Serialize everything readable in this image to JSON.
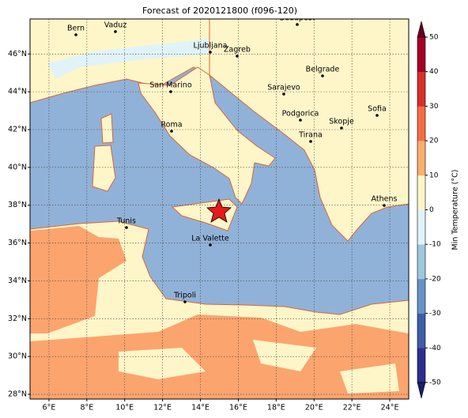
{
  "title": "Forecast of 2020121800 (f096-120)",
  "map": {
    "xlim": [
      5,
      25
    ],
    "ylim": [
      27.75,
      47.85
    ],
    "xticks": [
      {
        "value": 6,
        "label": "6°E"
      },
      {
        "value": 8,
        "label": "8°E"
      },
      {
        "value": 10,
        "label": "10°E"
      },
      {
        "value": 12,
        "label": "12°E"
      },
      {
        "value": 14,
        "label": "14°E"
      },
      {
        "value": 16,
        "label": "16°E"
      },
      {
        "value": 18,
        "label": "18°E"
      },
      {
        "value": 20,
        "label": "20°E"
      },
      {
        "value": 22,
        "label": "22°E"
      },
      {
        "value": 24,
        "label": "24°E"
      }
    ],
    "yticks": [
      {
        "value": 28,
        "label": "28°N"
      },
      {
        "value": 30,
        "label": "30°N"
      },
      {
        "value": 32,
        "label": "32°N"
      },
      {
        "value": 34,
        "label": "34°N"
      },
      {
        "value": 36,
        "label": "36°N"
      },
      {
        "value": 38,
        "label": "38°N"
      },
      {
        "value": 40,
        "label": "40°N"
      },
      {
        "value": 42,
        "label": "42°N"
      },
      {
        "value": 44,
        "label": "44°N"
      },
      {
        "value": 46,
        "label": "46°N"
      }
    ],
    "grid": true
  },
  "cities": [
    "Bern",
    "Vaduz",
    "Budapest",
    "Ljubljana",
    "Zagreb",
    "Belgrade",
    "San Marino",
    "Sarajevo",
    "Sofia",
    "Roma",
    "Podgorica",
    "Skopje",
    "Tirana",
    "Athens",
    "Tunis",
    "La Valette",
    "Tripoli"
  ],
  "colorbar": {
    "label": "Min Temperature (°C)",
    "lim": [
      -50,
      50
    ],
    "ticks": [
      -50,
      -40,
      -30,
      -20,
      -10,
      0,
      10,
      20,
      30,
      40,
      50
    ],
    "colors": [
      "#2c2f8f",
      "#3d5da9",
      "#6692c6",
      "#9cc7e0",
      "#e0f3f8",
      "#fef6c8",
      "#fdae6b",
      "#f46d43",
      "#d73027",
      "#a50026"
    ]
  }
}
